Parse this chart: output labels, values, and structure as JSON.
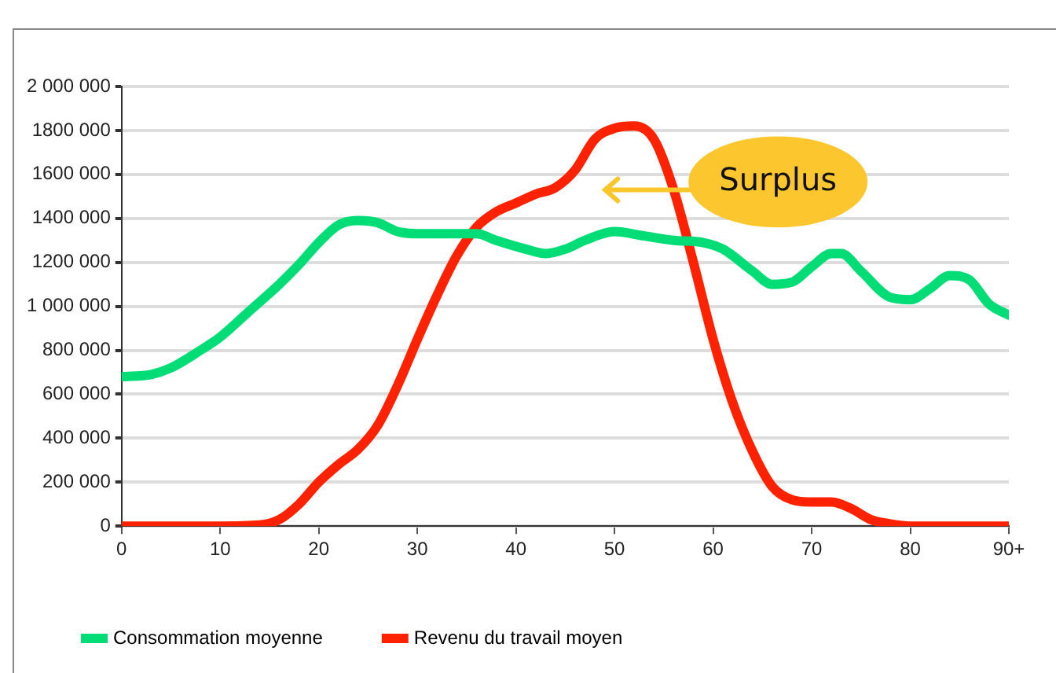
{
  "chart_data": {
    "type": "line",
    "xlim": [
      0,
      90
    ],
    "xticks": [
      0,
      10,
      20,
      30,
      40,
      50,
      60,
      70,
      80,
      {
        "value": 90,
        "label": "90+"
      }
    ],
    "ylim": [
      0,
      2000000
    ],
    "yticks": [
      {
        "value": 0,
        "label": "0"
      },
      {
        "value": 200000,
        "label": "200 000"
      },
      {
        "value": 400000,
        "label": "400 000"
      },
      {
        "value": 600000,
        "label": "600 000"
      },
      {
        "value": 800000,
        "label": "800 000"
      },
      {
        "value": 1000000,
        "label": "1 000 000"
      },
      {
        "value": 1200000,
        "label": "1200 000"
      },
      {
        "value": 1400000,
        "label": "1400 000"
      },
      {
        "value": 1600000,
        "label": "1600 000"
      },
      {
        "value": 1800000,
        "label": "1800 000"
      },
      {
        "value": 2000000,
        "label": "2 000 000"
      }
    ],
    "grid": "y",
    "legend": "bottom",
    "marker": "none",
    "line_style": "solid",
    "annotations": [
      "Surplus"
    ],
    "series": [
      {
        "name": "Consommation moyenne",
        "color": "#00dd77",
        "x": [
          0,
          3,
          5,
          8,
          10,
          13,
          16,
          18,
          20,
          22,
          24,
          26,
          28,
          30,
          33,
          36,
          38,
          41,
          43,
          45,
          47,
          50,
          53,
          56,
          59,
          61,
          64,
          66,
          68,
          70,
          72,
          73,
          75,
          78,
          80,
          82,
          84,
          86,
          88,
          90
        ],
        "values": [
          680000,
          690000,
          720000,
          800000,
          860000,
          980000,
          1100000,
          1190000,
          1290000,
          1370000,
          1390000,
          1380000,
          1340000,
          1330000,
          1330000,
          1330000,
          1300000,
          1260000,
          1240000,
          1260000,
          1300000,
          1340000,
          1320000,
          1300000,
          1290000,
          1260000,
          1160000,
          1100000,
          1110000,
          1180000,
          1240000,
          1240000,
          1160000,
          1040000,
          1030000,
          1080000,
          1140000,
          1120000,
          1010000,
          960000
        ]
      },
      {
        "name": "Revenu du travail moyen",
        "color": "#ff2200",
        "x": [
          0,
          10,
          14,
          16,
          18,
          20,
          22,
          24,
          26,
          28,
          30,
          32,
          34,
          36,
          38,
          40,
          42,
          44,
          46,
          48,
          50,
          52,
          54,
          56,
          58,
          60,
          62,
          64,
          66,
          68,
          70,
          72,
          74,
          76,
          78,
          80,
          90
        ],
        "values": [
          0,
          0,
          5000,
          30000,
          100000,
          200000,
          280000,
          350000,
          460000,
          640000,
          850000,
          1050000,
          1230000,
          1360000,
          1430000,
          1470000,
          1510000,
          1540000,
          1620000,
          1760000,
          1810000,
          1820000,
          1760000,
          1530000,
          1200000,
          850000,
          560000,
          340000,
          180000,
          120000,
          110000,
          110000,
          80000,
          30000,
          10000,
          0,
          0
        ]
      }
    ]
  }
}
